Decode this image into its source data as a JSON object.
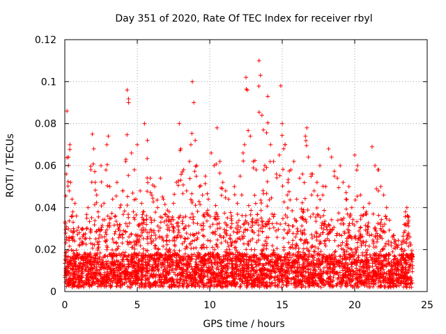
{
  "chart_data": {
    "type": "scatter",
    "title": "Day 351 of 2020, Rate Of TEC Index for receiver rbyl",
    "xlabel": "GPS time / hours",
    "ylabel": "ROTI / TECUs",
    "xlim": [
      0,
      25
    ],
    "ylim": [
      0,
      0.12
    ],
    "xticks": [
      0,
      5,
      10,
      15,
      20,
      25
    ],
    "yticks": [
      0,
      0.02,
      0.04,
      0.06,
      0.08,
      0.1,
      0.12
    ],
    "xtick_labels": [
      "0",
      "5",
      "10",
      "15",
      "20",
      "25"
    ],
    "ytick_labels": [
      "0",
      "0.02",
      "0.04",
      "0.06",
      "0.08",
      "0.1",
      "0.12"
    ],
    "grid": true,
    "marker": "+",
    "series_color": "#ff0000",
    "x_extent": [
      0,
      24
    ],
    "series": [
      {
        "x": [
          0.1,
          0.15,
          0.25,
          0.3,
          0.35,
          0.4,
          0.5,
          0.55,
          0.6,
          0.7,
          0.8,
          1.0,
          1.2,
          1.4,
          1.6,
          1.8,
          1.9,
          2.0,
          2.1,
          2.2,
          2.3,
          2.5,
          2.7,
          2.9,
          3.0,
          3.1,
          3.3,
          3.5,
          3.6,
          3.8,
          4.0,
          4.2,
          4.3,
          4.4,
          4.6,
          4.8,
          4.9,
          5.0,
          5.2,
          5.3,
          5.4,
          5.5,
          5.7,
          5.9,
          6.0,
          6.2,
          6.4,
          6.6,
          6.8,
          7.0,
          7.2,
          7.5,
          7.7,
          7.9,
          8.0,
          8.2,
          8.4,
          8.6,
          8.7,
          8.8,
          8.9,
          9.0,
          9.1,
          9.3,
          9.5,
          9.7,
          9.9,
          10.1,
          10.3,
          10.5,
          10.7,
          10.9,
          11.1,
          11.3,
          11.5,
          11.7,
          11.9,
          12.1,
          12.3,
          12.4,
          12.5,
          12.6,
          12.8,
          13.0,
          13.2,
          13.4,
          13.5,
          13.6,
          13.7,
          13.8,
          14.0,
          14.2,
          14.4,
          14.6,
          14.8,
          14.9,
          15.0,
          15.1,
          15.2,
          15.4,
          15.6,
          15.8,
          16.0,
          16.2,
          16.4,
          16.6,
          16.7,
          16.8,
          17.0,
          17.2,
          17.4,
          17.6,
          17.8,
          18.0,
          18.2,
          18.4,
          18.6,
          18.8,
          19.0,
          19.2,
          19.4,
          19.6,
          19.8,
          20.0,
          20.2,
          20.4,
          20.6,
          20.8,
          21.0,
          21.2,
          21.4,
          21.6,
          21.8,
          22.0,
          22.2,
          22.4,
          22.6,
          22.8,
          23.0,
          23.2,
          23.4,
          23.5,
          23.6,
          23.7,
          23.8,
          23.9
        ],
        "y": [
          0.056,
          0.086,
          0.064,
          0.048,
          0.07,
          0.052,
          0.044,
          0.038,
          0.03,
          0.042,
          0.036,
          0.028,
          0.03,
          0.025,
          0.04,
          0.058,
          0.075,
          0.068,
          0.052,
          0.046,
          0.038,
          0.06,
          0.042,
          0.07,
          0.074,
          0.05,
          0.044,
          0.036,
          0.052,
          0.04,
          0.048,
          0.062,
          0.096,
          0.09,
          0.066,
          0.058,
          0.044,
          0.07,
          0.048,
          0.042,
          0.038,
          0.08,
          0.072,
          0.054,
          0.046,
          0.05,
          0.04,
          0.054,
          0.044,
          0.034,
          0.038,
          0.042,
          0.052,
          0.08,
          0.068,
          0.058,
          0.048,
          0.062,
          0.07,
          0.1,
          0.09,
          0.072,
          0.06,
          0.05,
          0.046,
          0.055,
          0.044,
          0.066,
          0.06,
          0.078,
          0.062,
          0.052,
          0.048,
          0.044,
          0.036,
          0.05,
          0.042,
          0.055,
          0.066,
          0.07,
          0.102,
          0.096,
          0.074,
          0.062,
          0.058,
          0.11,
          0.103,
          0.084,
          0.077,
          0.06,
          0.093,
          0.07,
          0.062,
          0.056,
          0.065,
          0.098,
          0.08,
          0.068,
          0.07,
          0.052,
          0.058,
          0.062,
          0.044,
          0.054,
          0.056,
          0.074,
          0.078,
          0.064,
          0.056,
          0.048,
          0.052,
          0.06,
          0.046,
          0.05,
          0.068,
          0.064,
          0.055,
          0.054,
          0.06,
          0.052,
          0.044,
          0.05,
          0.04,
          0.065,
          0.06,
          0.046,
          0.04,
          0.038,
          0.042,
          0.069,
          0.06,
          0.058,
          0.05,
          0.046,
          0.04,
          0.034,
          0.026,
          0.024,
          0.022,
          0.02,
          0.028,
          0.038,
          0.04,
          0.034,
          0.026,
          0.018
        ]
      }
    ]
  }
}
